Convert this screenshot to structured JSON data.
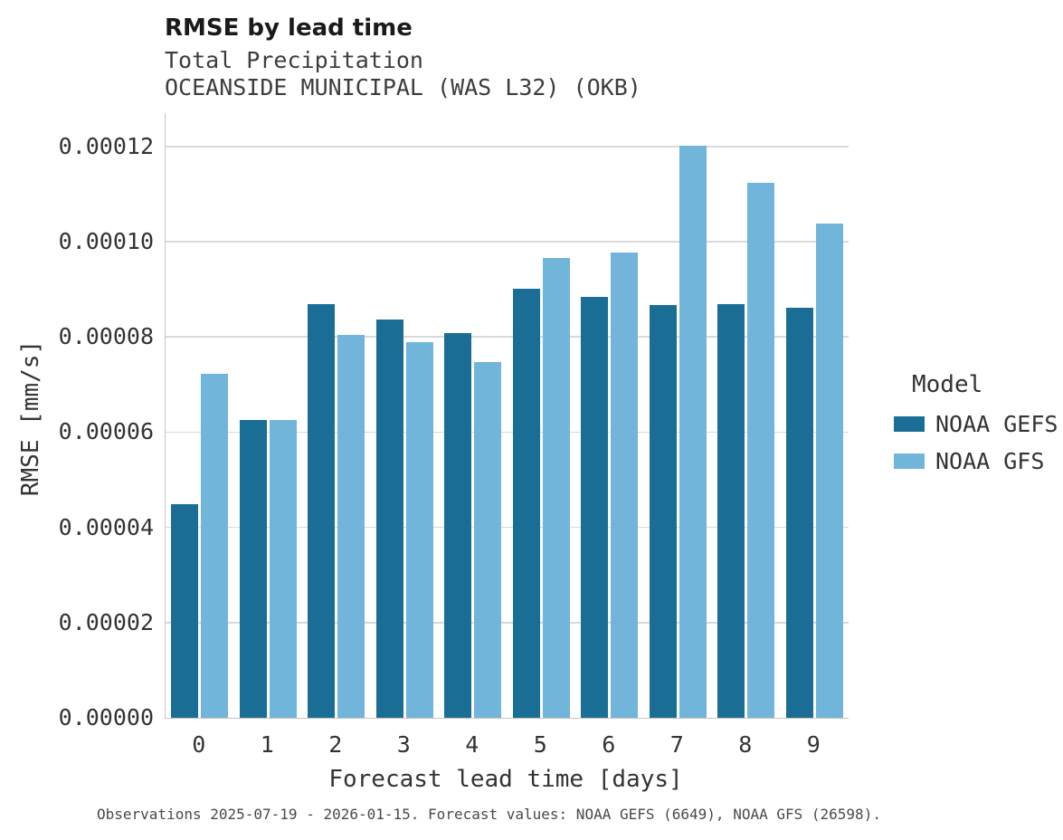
{
  "header": {
    "title": "RMSE by lead time",
    "subtitle1": "Total Precipitation",
    "subtitle2": "OCEANSIDE MUNICIPAL (WAS L32) (OKB)"
  },
  "caption": "Observations 2025-07-19 - 2026-01-15. Forecast values: NOAA GEFS (6649), NOAA GFS (26598).",
  "chart_data": {
    "type": "bar",
    "title": "RMSE by lead time",
    "subtitle": [
      "Total Precipitation",
      "OCEANSIDE MUNICIPAL (WAS L32) (OKB)"
    ],
    "xlabel": "Forecast lead time [days]",
    "ylabel": "RMSE [mm/s]",
    "categories": [
      "0",
      "1",
      "2",
      "3",
      "4",
      "5",
      "6",
      "7",
      "8",
      "9"
    ],
    "series": [
      {
        "name": "NOAA GEFS",
        "color": "#1a6e96",
        "values": [
          4.48e-05,
          6.26e-05,
          8.69e-05,
          8.36e-05,
          8.08e-05,
          9.02e-05,
          8.85e-05,
          8.66e-05,
          8.68e-05,
          8.62e-05
        ]
      },
      {
        "name": "NOAA GFS",
        "color": "#71b5db",
        "values": [
          7.22e-05,
          6.25e-05,
          8.04e-05,
          7.89e-05,
          7.48e-05,
          9.65e-05,
          9.77e-05,
          0.0001202,
          0.0001124,
          0.0001038
        ]
      }
    ],
    "ylim": [
      0,
      0.000127
    ],
    "yticks": [
      0,
      2e-05,
      4e-05,
      6e-05,
      8e-05,
      0.0001,
      0.00012
    ],
    "ytick_labels": [
      "0.00000",
      "0.00002",
      "0.00004",
      "0.00006",
      "0.00008",
      "0.00010",
      "0.00012"
    ],
    "grid": "horizontal",
    "legend": {
      "title": "Model",
      "position": "right",
      "entries": [
        "NOAA GEFS",
        "NOAA GFS"
      ]
    }
  }
}
